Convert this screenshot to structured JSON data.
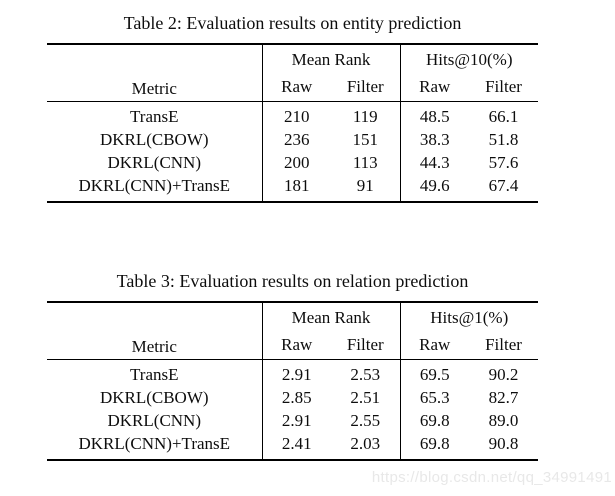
{
  "page": {
    "background": "#ffffff",
    "text_color": "#0d0d0d"
  },
  "watermark": {
    "text": "https://blog.csdn.net/qq_34991491",
    "color": "#e8e8e8"
  },
  "tables": [
    {
      "caption": "Table 2: Evaluation results on entity prediction",
      "metric_header": "Metric",
      "groups": [
        {
          "label": "Mean Rank"
        },
        {
          "label": "Hits@10(%)"
        }
      ],
      "sub_headers": [
        "Raw",
        "Filter",
        "Raw",
        "Filter"
      ],
      "rows": [
        {
          "metric": "TransE",
          "values": [
            "210",
            "119",
            "48.5",
            "66.1"
          ],
          "bold": [
            false,
            false,
            false,
            false
          ]
        },
        {
          "metric": "DKRL(CBOW)",
          "values": [
            "236",
            "151",
            "38.3",
            "51.8"
          ],
          "bold": [
            false,
            false,
            false,
            false
          ]
        },
        {
          "metric": "DKRL(CNN)",
          "values": [
            "200",
            "113",
            "44.3",
            "57.6"
          ],
          "bold": [
            false,
            false,
            false,
            false
          ]
        },
        {
          "metric": "DKRL(CNN)+TransE",
          "values": [
            "181",
            "91",
            "49.6",
            "67.4"
          ],
          "bold": [
            true,
            true,
            true,
            true
          ]
        }
      ]
    },
    {
      "caption": "Table 3: Evaluation results on relation prediction",
      "metric_header": "Metric",
      "groups": [
        {
          "label": "Mean Rank"
        },
        {
          "label": "Hits@1(%)"
        }
      ],
      "sub_headers": [
        "Raw",
        "Filter",
        "Raw",
        "Filter"
      ],
      "rows": [
        {
          "metric": "TransE",
          "values": [
            "2.91",
            "2.53",
            "69.5",
            "90.2"
          ],
          "bold": [
            false,
            false,
            false,
            false
          ]
        },
        {
          "metric": "DKRL(CBOW)",
          "values": [
            "2.85",
            "2.51",
            "65.3",
            "82.7"
          ],
          "bold": [
            false,
            false,
            false,
            false
          ]
        },
        {
          "metric": "DKRL(CNN)",
          "values": [
            "2.91",
            "2.55",
            "69.8",
            "89.0"
          ],
          "bold": [
            false,
            false,
            true,
            false
          ]
        },
        {
          "metric": "DKRL(CNN)+TransE",
          "values": [
            "2.41",
            "2.03",
            "69.8",
            "90.8"
          ],
          "bold": [
            true,
            true,
            true,
            true
          ]
        }
      ]
    }
  ],
  "chart_data": [
    {
      "type": "table",
      "title": "Table 2: Evaluation results on entity prediction",
      "columns": [
        "Metric",
        "Mean Rank Raw",
        "Mean Rank Filter",
        "Hits@10(%) Raw",
        "Hits@10(%) Filter"
      ],
      "rows": [
        [
          "TransE",
          210,
          119,
          48.5,
          66.1
        ],
        [
          "DKRL(CBOW)",
          236,
          151,
          38.3,
          51.8
        ],
        [
          "DKRL(CNN)",
          200,
          113,
          44.3,
          57.6
        ],
        [
          "DKRL(CNN)+TransE",
          181,
          91,
          49.6,
          67.4
        ]
      ]
    },
    {
      "type": "table",
      "title": "Table 3: Evaluation results on relation prediction",
      "columns": [
        "Metric",
        "Mean Rank Raw",
        "Mean Rank Filter",
        "Hits@1(%) Raw",
        "Hits@1(%) Filter"
      ],
      "rows": [
        [
          "TransE",
          2.91,
          2.53,
          69.5,
          90.2
        ],
        [
          "DKRL(CBOW)",
          2.85,
          2.51,
          65.3,
          82.7
        ],
        [
          "DKRL(CNN)",
          2.91,
          2.55,
          69.8,
          89.0
        ],
        [
          "DKRL(CNN)+TransE",
          2.41,
          2.03,
          69.8,
          90.8
        ]
      ]
    }
  ]
}
